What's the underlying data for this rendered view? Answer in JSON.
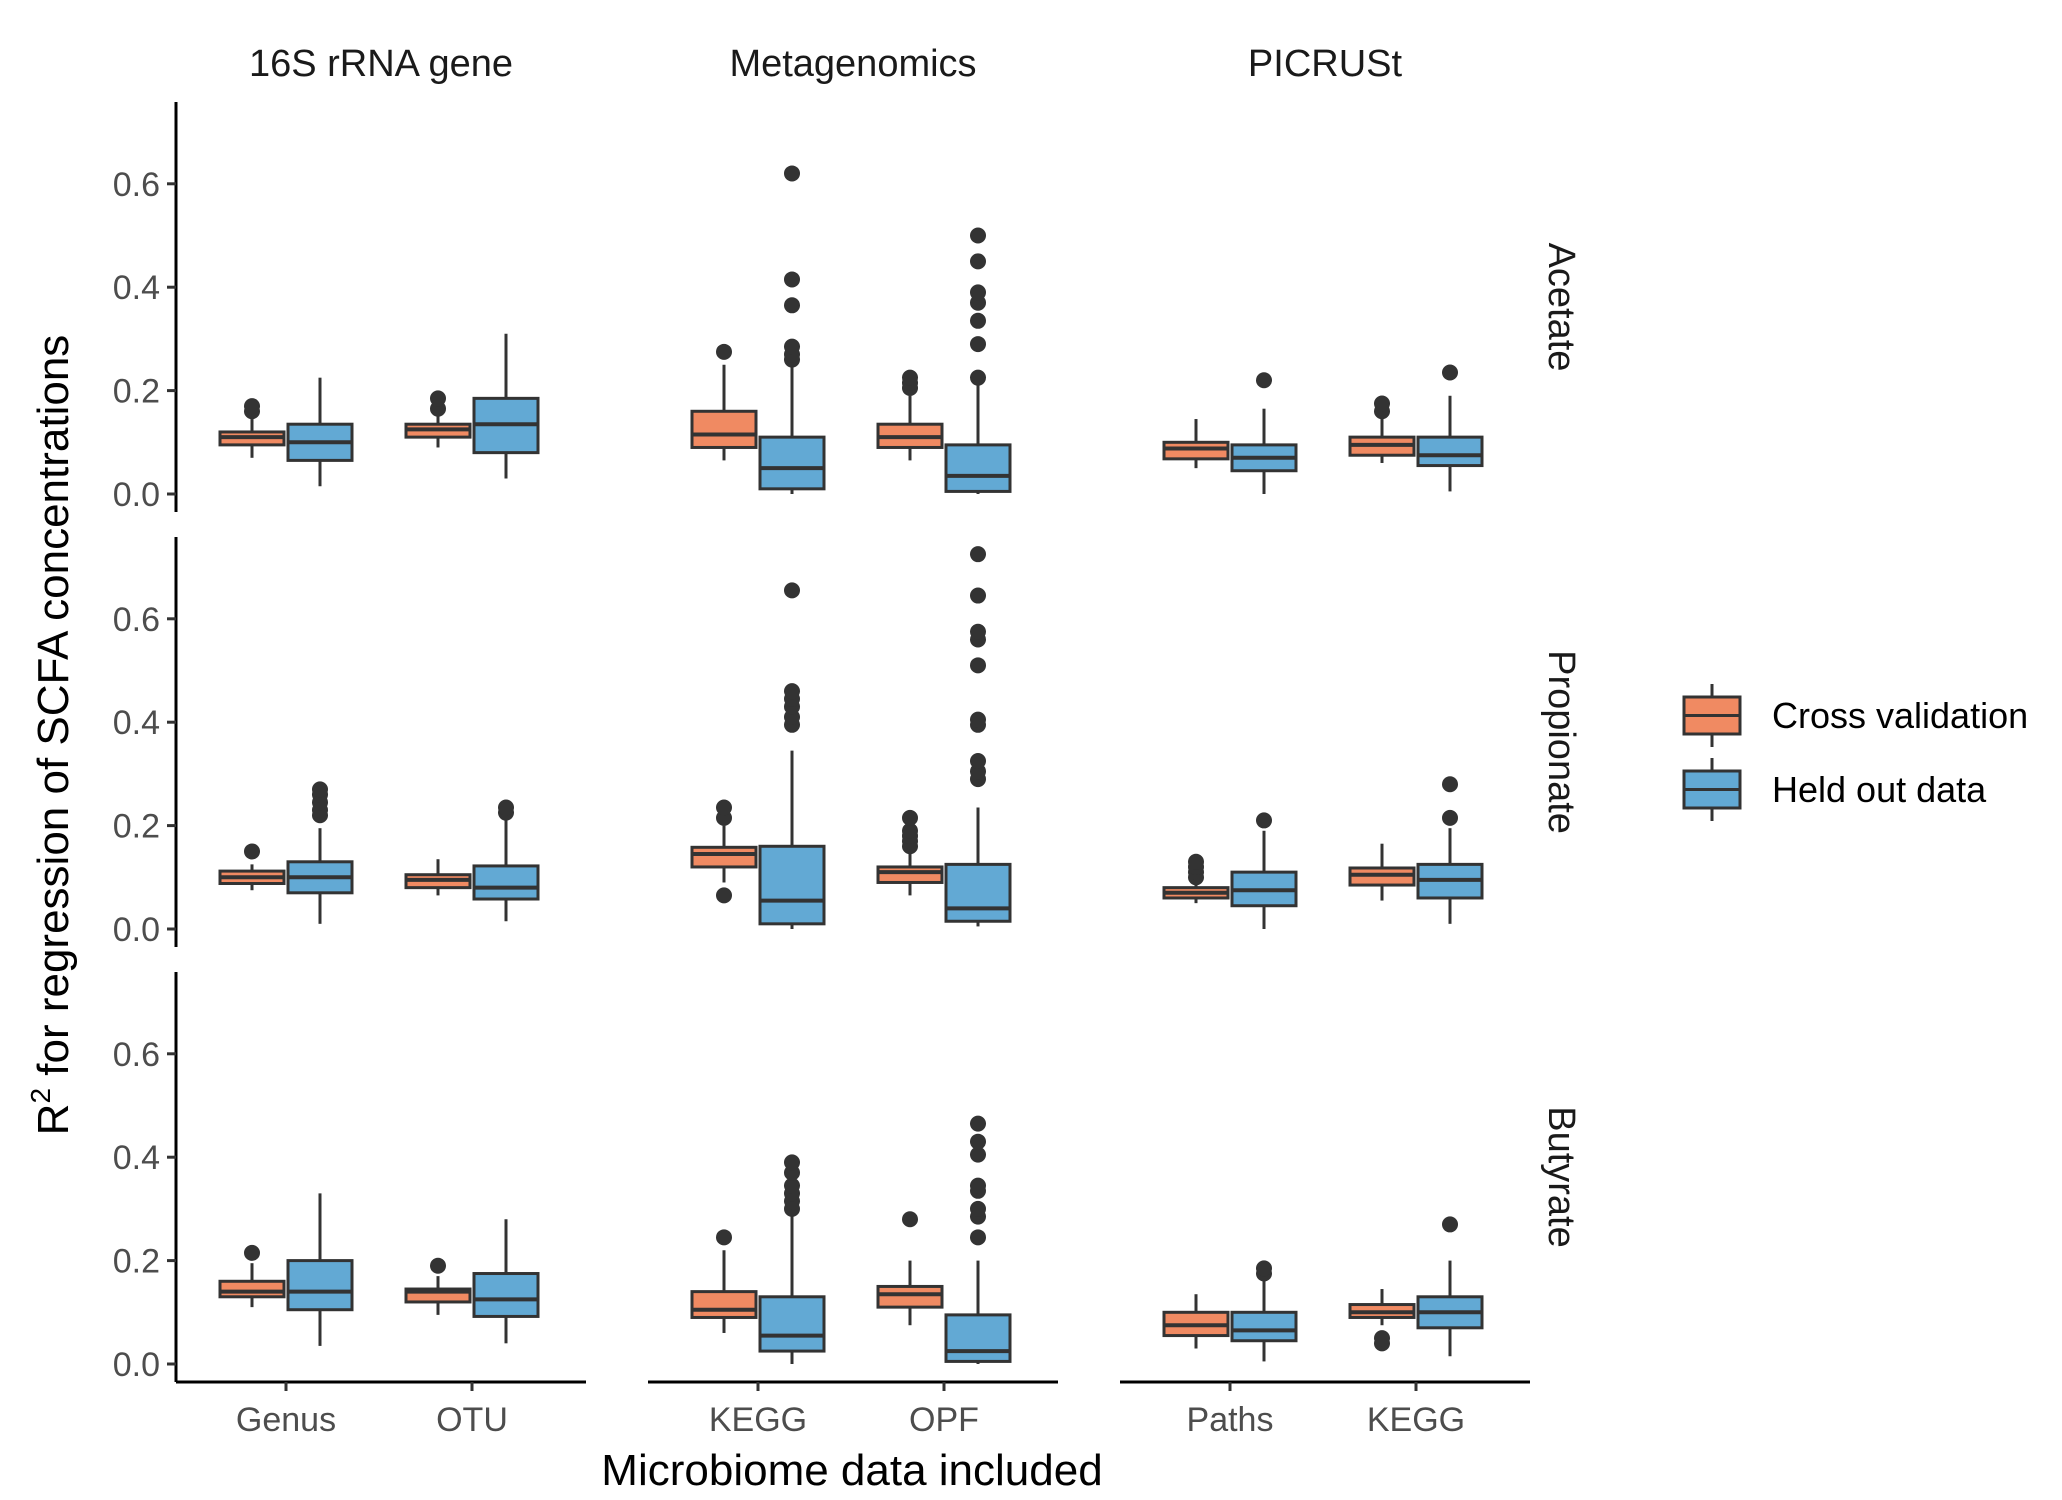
{
  "chart_data": {
    "type": "box",
    "xlabel": "Microbiome data included",
    "ylabel_main": "R",
    "ylabel_sup": "2",
    "ylabel_rest": " for regression of SCFA concentrations",
    "ylim": [
      0,
      0.76
    ],
    "yticks": [
      "0.0",
      "0.2",
      "0.4",
      "0.6"
    ],
    "columns": [
      {
        "name": "16S rRNA gene",
        "categories": [
          "Genus",
          "OTU"
        ]
      },
      {
        "name": "Metagenomics",
        "categories": [
          "KEGG",
          "OPF"
        ]
      },
      {
        "name": "PICRUSt",
        "categories": [
          "Paths",
          "KEGG"
        ]
      }
    ],
    "rows": [
      "Acetate",
      "Propionate",
      "Butyrate"
    ],
    "legend": {
      "position": "right",
      "items": [
        {
          "key": "cv",
          "label": "Cross validation",
          "color": "#F08A62"
        },
        {
          "key": "ho",
          "label": "Held out data",
          "color": "#62A9D4"
        }
      ]
    },
    "boxes": [
      {
        "row": "Acetate",
        "column": "16S rRNA gene",
        "category": "Genus",
        "series": "cv",
        "whisker_low": 0.07,
        "q1": 0.095,
        "median": 0.11,
        "q3": 0.12,
        "whisker_high": 0.145,
        "outliers": [
          0.16,
          0.17
        ]
      },
      {
        "row": "Acetate",
        "column": "16S rRNA gene",
        "category": "Genus",
        "series": "ho",
        "whisker_low": 0.015,
        "q1": 0.065,
        "median": 0.1,
        "q3": 0.135,
        "whisker_high": 0.225,
        "outliers": []
      },
      {
        "row": "Acetate",
        "column": "16S rRNA gene",
        "category": "OTU",
        "series": "cv",
        "whisker_low": 0.09,
        "q1": 0.11,
        "median": 0.125,
        "q3": 0.135,
        "whisker_high": 0.155,
        "outliers": [
          0.165,
          0.185
        ]
      },
      {
        "row": "Acetate",
        "column": "16S rRNA gene",
        "category": "OTU",
        "series": "ho",
        "whisker_low": 0.03,
        "q1": 0.08,
        "median": 0.135,
        "q3": 0.185,
        "whisker_high": 0.31,
        "outliers": []
      },
      {
        "row": "Acetate",
        "column": "Metagenomics",
        "category": "KEGG",
        "series": "cv",
        "whisker_low": 0.065,
        "q1": 0.09,
        "median": 0.115,
        "q3": 0.16,
        "whisker_high": 0.25,
        "outliers": [
          0.275
        ]
      },
      {
        "row": "Acetate",
        "column": "Metagenomics",
        "category": "KEGG",
        "series": "ho",
        "whisker_low": 0.0,
        "q1": 0.01,
        "median": 0.05,
        "q3": 0.11,
        "whisker_high": 0.25,
        "outliers": [
          0.26,
          0.27,
          0.285,
          0.365,
          0.415,
          0.62
        ]
      },
      {
        "row": "Acetate",
        "column": "Metagenomics",
        "category": "OPF",
        "series": "cv",
        "whisker_low": 0.065,
        "q1": 0.09,
        "median": 0.11,
        "q3": 0.135,
        "whisker_high": 0.19,
        "outliers": [
          0.205,
          0.215,
          0.225
        ]
      },
      {
        "row": "Acetate",
        "column": "Metagenomics",
        "category": "OPF",
        "series": "ho",
        "whisker_low": 0.0,
        "q1": 0.005,
        "median": 0.035,
        "q3": 0.095,
        "whisker_high": 0.215,
        "outliers": [
          0.225,
          0.29,
          0.335,
          0.37,
          0.39,
          0.45,
          0.5
        ]
      },
      {
        "row": "Acetate",
        "column": "PICRUSt",
        "category": "Paths",
        "series": "cv",
        "whisker_low": 0.05,
        "q1": 0.068,
        "median": 0.088,
        "q3": 0.1,
        "whisker_high": 0.145,
        "outliers": []
      },
      {
        "row": "Acetate",
        "column": "PICRUSt",
        "category": "Paths",
        "series": "ho",
        "whisker_low": 0.0,
        "q1": 0.045,
        "median": 0.07,
        "q3": 0.095,
        "whisker_high": 0.165,
        "outliers": [
          0.22
        ]
      },
      {
        "row": "Acetate",
        "column": "PICRUSt",
        "category": "KEGG",
        "series": "cv",
        "whisker_low": 0.06,
        "q1": 0.075,
        "median": 0.095,
        "q3": 0.11,
        "whisker_high": 0.155,
        "outliers": [
          0.16,
          0.175
        ]
      },
      {
        "row": "Acetate",
        "column": "PICRUSt",
        "category": "KEGG",
        "series": "ho",
        "whisker_low": 0.005,
        "q1": 0.055,
        "median": 0.075,
        "q3": 0.11,
        "whisker_high": 0.19,
        "outliers": [
          0.235
        ]
      },
      {
        "row": "Propionate",
        "column": "16S rRNA gene",
        "category": "Genus",
        "series": "cv",
        "whisker_low": 0.075,
        "q1": 0.088,
        "median": 0.1,
        "q3": 0.112,
        "whisker_high": 0.125,
        "outliers": [
          0.15
        ]
      },
      {
        "row": "Propionate",
        "column": "16S rRNA gene",
        "category": "Genus",
        "series": "ho",
        "whisker_low": 0.01,
        "q1": 0.07,
        "median": 0.1,
        "q3": 0.13,
        "whisker_high": 0.195,
        "outliers": [
          0.22,
          0.23,
          0.245,
          0.26,
          0.27
        ]
      },
      {
        "row": "Propionate",
        "column": "16S rRNA gene",
        "category": "OTU",
        "series": "cv",
        "whisker_low": 0.065,
        "q1": 0.08,
        "median": 0.095,
        "q3": 0.105,
        "whisker_high": 0.135,
        "outliers": []
      },
      {
        "row": "Propionate",
        "column": "16S rRNA gene",
        "category": "OTU",
        "series": "ho",
        "whisker_low": 0.015,
        "q1": 0.058,
        "median": 0.08,
        "q3": 0.122,
        "whisker_high": 0.21,
        "outliers": [
          0.225,
          0.235
        ]
      },
      {
        "row": "Propionate",
        "column": "Metagenomics",
        "category": "KEGG",
        "series": "cv",
        "whisker_low": 0.09,
        "q1": 0.12,
        "median": 0.145,
        "q3": 0.158,
        "whisker_high": 0.2,
        "outliers": [
          0.065,
          0.215,
          0.235
        ]
      },
      {
        "row": "Propionate",
        "column": "Metagenomics",
        "category": "KEGG",
        "series": "ho",
        "whisker_low": 0.0,
        "q1": 0.01,
        "median": 0.055,
        "q3": 0.16,
        "whisker_high": 0.345,
        "outliers": [
          0.395,
          0.41,
          0.43,
          0.445,
          0.46,
          0.655
        ]
      },
      {
        "row": "Propionate",
        "column": "Metagenomics",
        "category": "OPF",
        "series": "cv",
        "whisker_low": 0.065,
        "q1": 0.09,
        "median": 0.11,
        "q3": 0.12,
        "whisker_high": 0.15,
        "outliers": [
          0.16,
          0.17,
          0.18,
          0.19,
          0.215
        ]
      },
      {
        "row": "Propionate",
        "column": "Metagenomics",
        "category": "OPF",
        "series": "ho",
        "whisker_low": 0.005,
        "q1": 0.015,
        "median": 0.04,
        "q3": 0.125,
        "whisker_high": 0.235,
        "outliers": [
          0.29,
          0.305,
          0.325,
          0.395,
          0.405,
          0.51,
          0.56,
          0.575,
          0.645,
          0.725
        ]
      },
      {
        "row": "Propionate",
        "column": "PICRUSt",
        "category": "Paths",
        "series": "cv",
        "whisker_low": 0.05,
        "q1": 0.06,
        "median": 0.07,
        "q3": 0.08,
        "whisker_high": 0.09,
        "outliers": [
          0.1,
          0.11,
          0.12,
          0.13
        ]
      },
      {
        "row": "Propionate",
        "column": "PICRUSt",
        "category": "Paths",
        "series": "ho",
        "whisker_low": 0.0,
        "q1": 0.045,
        "median": 0.075,
        "q3": 0.11,
        "whisker_high": 0.19,
        "outliers": [
          0.21
        ]
      },
      {
        "row": "Propionate",
        "column": "PICRUSt",
        "category": "KEGG",
        "series": "cv",
        "whisker_low": 0.055,
        "q1": 0.085,
        "median": 0.105,
        "q3": 0.118,
        "whisker_high": 0.165,
        "outliers": []
      },
      {
        "row": "Propionate",
        "column": "PICRUSt",
        "category": "KEGG",
        "series": "ho",
        "whisker_low": 0.01,
        "q1": 0.06,
        "median": 0.095,
        "q3": 0.125,
        "whisker_high": 0.195,
        "outliers": [
          0.215,
          0.28
        ]
      },
      {
        "row": "Butyrate",
        "column": "16S rRNA gene",
        "category": "Genus",
        "series": "cv",
        "whisker_low": 0.11,
        "q1": 0.13,
        "median": 0.14,
        "q3": 0.16,
        "whisker_high": 0.195,
        "outliers": [
          0.215
        ]
      },
      {
        "row": "Butyrate",
        "column": "16S rRNA gene",
        "category": "Genus",
        "series": "ho",
        "whisker_low": 0.035,
        "q1": 0.105,
        "median": 0.14,
        "q3": 0.2,
        "whisker_high": 0.33,
        "outliers": []
      },
      {
        "row": "Butyrate",
        "column": "16S rRNA gene",
        "category": "OTU",
        "series": "cv",
        "whisker_low": 0.095,
        "q1": 0.12,
        "median": 0.14,
        "q3": 0.145,
        "whisker_high": 0.17,
        "outliers": [
          0.19
        ]
      },
      {
        "row": "Butyrate",
        "column": "16S rRNA gene",
        "category": "OTU",
        "series": "ho",
        "whisker_low": 0.04,
        "q1": 0.092,
        "median": 0.125,
        "q3": 0.175,
        "whisker_high": 0.28,
        "outliers": []
      },
      {
        "row": "Butyrate",
        "column": "Metagenomics",
        "category": "KEGG",
        "series": "cv",
        "whisker_low": 0.06,
        "q1": 0.09,
        "median": 0.105,
        "q3": 0.14,
        "whisker_high": 0.22,
        "outliers": [
          0.245
        ]
      },
      {
        "row": "Butyrate",
        "column": "Metagenomics",
        "category": "KEGG",
        "series": "ho",
        "whisker_low": 0.0,
        "q1": 0.025,
        "median": 0.055,
        "q3": 0.13,
        "whisker_high": 0.29,
        "outliers": [
          0.3,
          0.315,
          0.33,
          0.345,
          0.37,
          0.39
        ]
      },
      {
        "row": "Butyrate",
        "column": "Metagenomics",
        "category": "OPF",
        "series": "cv",
        "whisker_low": 0.075,
        "q1": 0.11,
        "median": 0.135,
        "q3": 0.15,
        "whisker_high": 0.2,
        "outliers": [
          0.28
        ]
      },
      {
        "row": "Butyrate",
        "column": "Metagenomics",
        "category": "OPF",
        "series": "ho",
        "whisker_low": 0.0,
        "q1": 0.005,
        "median": 0.025,
        "q3": 0.095,
        "whisker_high": 0.2,
        "outliers": [
          0.245,
          0.285,
          0.3,
          0.335,
          0.345,
          0.405,
          0.43,
          0.465
        ]
      },
      {
        "row": "Butyrate",
        "column": "PICRUSt",
        "category": "Paths",
        "series": "cv",
        "whisker_low": 0.03,
        "q1": 0.055,
        "median": 0.075,
        "q3": 0.1,
        "whisker_high": 0.135,
        "outliers": []
      },
      {
        "row": "Butyrate",
        "column": "PICRUSt",
        "category": "Paths",
        "series": "ho",
        "whisker_low": 0.005,
        "q1": 0.045,
        "median": 0.065,
        "q3": 0.1,
        "whisker_high": 0.165,
        "outliers": [
          0.175,
          0.185
        ]
      },
      {
        "row": "Butyrate",
        "column": "PICRUSt",
        "category": "KEGG",
        "series": "cv",
        "whisker_low": 0.075,
        "q1": 0.09,
        "median": 0.1,
        "q3": 0.115,
        "whisker_high": 0.145,
        "outliers": [
          0.04,
          0.05
        ]
      },
      {
        "row": "Butyrate",
        "column": "PICRUSt",
        "category": "KEGG",
        "series": "ho",
        "whisker_low": 0.015,
        "q1": 0.07,
        "median": 0.1,
        "q3": 0.13,
        "whisker_high": 0.2,
        "outliers": [
          0.27
        ]
      }
    ]
  }
}
